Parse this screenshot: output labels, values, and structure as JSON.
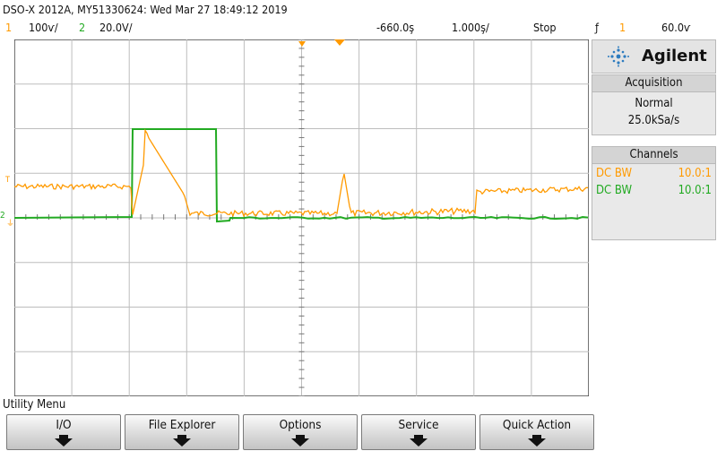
{
  "header": {
    "title": "DSO-X 2012A, MY51330624: Wed Mar 27 18:49:12 2019",
    "ch1_num": "1",
    "ch1_scale": "100ѵ/",
    "ch2_num": "2",
    "ch2_scale": "20.0V/",
    "time_offset": "-660.0ş",
    "time_scale": "1.000ş/",
    "run_state": "Stop",
    "trigger_icon": "ƒ",
    "trigger_channel": "1",
    "trigger_level": "60.0ѵ"
  },
  "brand": {
    "logo_text": "Agilent",
    "logo_icon": "agilent-spark-icon"
  },
  "acquisition": {
    "title": "Acquisition",
    "mode": "Normal",
    "rate": "25.0kSa/s"
  },
  "channels": {
    "title": "Channels",
    "rows": [
      {
        "coupling": "DC BW",
        "probe": "10.0:1",
        "color": "#ff9a00"
      },
      {
        "coupling": "DC BW",
        "probe": "10.0:1",
        "color": "#22aa22"
      }
    ]
  },
  "menu": {
    "title": "Utility Menu",
    "softkeys": [
      "I/O",
      "File Explorer",
      "Options",
      "Service",
      "Quick Action"
    ]
  },
  "markers": {
    "ch1_marker": "T",
    "ch2_marker": "2"
  },
  "colors": {
    "ch1": "#ff9a00",
    "ch2": "#22aa22",
    "grid": "#bdbdbd",
    "border": "#444444"
  }
}
